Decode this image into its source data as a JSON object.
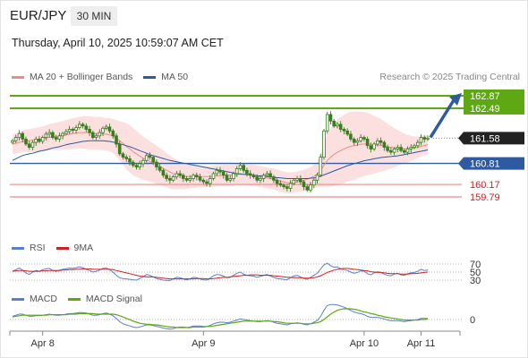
{
  "header": {
    "pair": "EUR/JPY",
    "timeframe": "30 MIN",
    "timestamp": "Thursday, April 10, 2025 10:59:07 AM CET",
    "copyright": "Research © 2025 Trading Central"
  },
  "colors": {
    "candle": "#3a7d1f",
    "ma20_band": "#f08a8a",
    "band_fill": "#fbd6d6",
    "ma50": "#2d5aa0",
    "resistance": "#5ea813",
    "support": "#f08a8a",
    "support_label": "#cc2222",
    "pivot": "#2d5aa0",
    "rsi": "#5b7fd0",
    "rsi_ma": "#cc2222",
    "macd": "#5b7fd0",
    "macd_signal": "#5ea813",
    "forecast_arrow": "#2d5aa0",
    "grid": "#cccccc"
  },
  "chart_data": [
    {
      "type": "candlestick",
      "panel": "price",
      "legend": [
        "MA 20 + Bollinger Bands",
        "MA 50"
      ],
      "ylim": [
        159.2,
        163.3
      ],
      "x_tick_labels": [
        "Apr 8",
        "Apr 9",
        "Apr 10",
        "Apr 11"
      ],
      "x_tick_index": [
        9,
        57,
        105,
        122
      ],
      "current_price": "161.58",
      "levels": [
        {
          "value": 162.87,
          "label": "162.87",
          "kind": "resistance"
        },
        {
          "value": 162.49,
          "label": "162.49",
          "kind": "resistance"
        },
        {
          "value": 161.58,
          "label": "161.58",
          "kind": "current"
        },
        {
          "value": 160.81,
          "label": "160.81",
          "kind": "pivot"
        },
        {
          "value": 160.17,
          "label": "160.17",
          "kind": "support"
        },
        {
          "value": 159.79,
          "label": "159.79",
          "kind": "support"
        }
      ],
      "forecast_target": 162.87,
      "close": [
        161.5,
        161.6,
        161.72,
        161.55,
        161.4,
        161.3,
        161.45,
        161.55,
        161.48,
        161.6,
        161.7,
        161.75,
        161.6,
        161.55,
        161.65,
        161.72,
        161.78,
        161.85,
        161.82,
        161.9,
        162.0,
        161.95,
        161.85,
        161.75,
        161.6,
        161.65,
        161.75,
        161.88,
        161.92,
        161.8,
        161.65,
        161.4,
        161.1,
        161.0,
        160.95,
        160.85,
        160.75,
        160.7,
        160.8,
        160.9,
        161.05,
        161.0,
        160.85,
        160.7,
        160.6,
        160.45,
        160.35,
        160.3,
        160.4,
        160.5,
        160.45,
        160.35,
        160.3,
        160.35,
        160.45,
        160.4,
        160.3,
        160.25,
        160.2,
        160.35,
        160.5,
        160.6,
        160.55,
        160.45,
        160.3,
        160.35,
        160.5,
        160.65,
        160.75,
        160.6,
        160.5,
        160.45,
        160.4,
        160.3,
        160.35,
        160.45,
        160.5,
        160.4,
        160.3,
        160.2,
        160.15,
        160.1,
        160.05,
        160.2,
        160.3,
        160.35,
        160.25,
        160.1,
        160.0,
        160.15,
        160.3,
        160.45,
        161.0,
        161.8,
        162.3,
        162.1,
        161.95,
        162.0,
        161.85,
        161.8,
        161.7,
        161.55,
        161.45,
        161.5,
        161.6,
        161.55,
        161.35,
        161.25,
        161.4,
        161.5,
        161.45,
        161.3,
        161.2,
        161.15,
        161.25,
        161.3,
        161.2,
        161.15,
        161.25,
        161.3,
        161.35,
        161.45,
        161.6,
        161.55,
        161.58
      ],
      "ma20": [
        161.4,
        161.42,
        161.45,
        161.48,
        161.5,
        161.5,
        161.52,
        161.53,
        161.55,
        161.56,
        161.58,
        161.6,
        161.62,
        161.63,
        161.65,
        161.66,
        161.68,
        161.7,
        161.72,
        161.73,
        161.75,
        161.75,
        161.75,
        161.74,
        161.73,
        161.72,
        161.72,
        161.71,
        161.7,
        161.68,
        161.64,
        161.58,
        161.5,
        161.42,
        161.33,
        161.25,
        161.17,
        161.1,
        161.03,
        160.97,
        160.92,
        160.87,
        160.82,
        160.77,
        160.72,
        160.66,
        160.6,
        160.55,
        160.5,
        160.47,
        160.44,
        160.42,
        160.41,
        160.41,
        160.41,
        160.41,
        160.41,
        160.41,
        160.41,
        160.41,
        160.42,
        160.43,
        160.44,
        160.45,
        160.45,
        160.45,
        160.46,
        160.47,
        160.48,
        160.48,
        160.47,
        160.46,
        160.45,
        160.43,
        160.41,
        160.39,
        160.37,
        160.35,
        160.33,
        160.3,
        160.27,
        160.25,
        160.22,
        160.22,
        160.23,
        160.25,
        160.27,
        160.3,
        160.33,
        160.37,
        160.42,
        160.48,
        160.6,
        160.75,
        160.9,
        161.0,
        161.08,
        161.15,
        161.2,
        161.25,
        161.3,
        161.33,
        161.35,
        161.37,
        161.39,
        161.4,
        161.4,
        161.39,
        161.38,
        161.37,
        161.36,
        161.34,
        161.32,
        161.3,
        161.29,
        161.28,
        161.27,
        161.26,
        161.26,
        161.27,
        161.28,
        161.3,
        161.33,
        161.36,
        161.38
      ],
      "ma50": [
        160.9,
        160.95,
        161.0,
        161.05,
        161.08,
        161.1,
        161.12,
        161.15,
        161.18,
        161.2,
        161.22,
        161.25,
        161.28,
        161.3,
        161.32,
        161.35,
        161.38,
        161.4,
        161.42,
        161.44,
        161.46,
        161.48,
        161.49,
        161.5,
        161.5,
        161.5,
        161.5,
        161.5,
        161.49,
        161.48,
        161.46,
        161.44,
        161.41,
        161.38,
        161.35,
        161.32,
        161.28,
        161.24,
        161.2,
        161.16,
        161.12,
        161.08,
        161.05,
        161.02,
        160.99,
        160.96,
        160.93,
        160.9,
        160.88,
        160.86,
        160.84,
        160.82,
        160.8,
        160.78,
        160.76,
        160.74,
        160.72,
        160.7,
        160.68,
        160.66,
        160.64,
        160.62,
        160.6,
        160.58,
        160.56,
        160.54,
        160.52,
        160.5,
        160.49,
        160.48,
        160.47,
        160.46,
        160.45,
        160.44,
        160.43,
        160.42,
        160.41,
        160.4,
        160.39,
        160.38,
        160.37,
        160.36,
        160.35,
        160.35,
        160.35,
        160.35,
        160.35,
        160.35,
        160.35,
        160.36,
        160.37,
        160.39,
        160.42,
        160.46,
        160.5,
        160.54,
        160.58,
        160.62,
        160.66,
        160.7,
        160.74,
        160.77,
        160.8,
        160.83,
        160.86,
        160.89,
        160.91,
        160.93,
        160.95,
        160.97,
        160.99,
        161.0,
        161.01,
        161.02,
        161.03,
        161.04,
        161.06,
        161.08,
        161.1,
        161.12,
        161.14,
        161.16,
        161.18,
        161.2,
        161.22
      ],
      "bb_width": [
        0.3,
        0.3,
        0.32,
        0.33,
        0.34,
        0.35,
        0.36,
        0.36,
        0.37,
        0.38,
        0.39,
        0.4,
        0.41,
        0.42,
        0.43,
        0.44,
        0.45,
        0.46,
        0.47,
        0.48,
        0.48,
        0.49,
        0.5,
        0.5,
        0.5,
        0.5,
        0.5,
        0.5,
        0.5,
        0.5,
        0.52,
        0.55,
        0.6,
        0.65,
        0.7,
        0.72,
        0.72,
        0.7,
        0.68,
        0.66,
        0.64,
        0.62,
        0.6,
        0.58,
        0.56,
        0.54,
        0.52,
        0.5,
        0.48,
        0.45,
        0.42,
        0.4,
        0.38,
        0.36,
        0.35,
        0.34,
        0.33,
        0.32,
        0.32,
        0.32,
        0.32,
        0.32,
        0.32,
        0.32,
        0.32,
        0.32,
        0.32,
        0.32,
        0.32,
        0.32,
        0.32,
        0.32,
        0.32,
        0.32,
        0.32,
        0.32,
        0.32,
        0.32,
        0.32,
        0.32,
        0.32,
        0.32,
        0.32,
        0.32,
        0.32,
        0.32,
        0.32,
        0.32,
        0.32,
        0.33,
        0.36,
        0.4,
        0.5,
        0.65,
        0.8,
        0.9,
        0.95,
        1.0,
        1.02,
        1.04,
        1.05,
        1.05,
        1.04,
        1.02,
        1.0,
        0.98,
        0.95,
        0.92,
        0.88,
        0.84,
        0.8,
        0.75,
        0.7,
        0.65,
        0.6,
        0.55,
        0.5,
        0.46,
        0.42,
        0.38,
        0.35,
        0.33,
        0.31,
        0.3,
        0.3
      ]
    },
    {
      "type": "line",
      "panel": "rsi",
      "legend": [
        "RSI",
        "9MA"
      ],
      "ylim": [
        25,
        75
      ],
      "reference_levels": [
        70,
        50,
        30
      ],
      "y_tick_labels": [
        "70",
        "50",
        "30"
      ],
      "series": [
        {
          "name": "RSI",
          "values": [
            52,
            56,
            60,
            55,
            48,
            44,
            50,
            54,
            52,
            56,
            58,
            59,
            54,
            52,
            55,
            57,
            58,
            60,
            59,
            61,
            63,
            61,
            57,
            54,
            50,
            52,
            55,
            59,
            60,
            56,
            50,
            42,
            36,
            34,
            33,
            32,
            31,
            30,
            34,
            38,
            44,
            42,
            38,
            34,
            32,
            30,
            29,
            29,
            33,
            37,
            36,
            33,
            31,
            33,
            37,
            36,
            33,
            31,
            30,
            35,
            41,
            44,
            43,
            40,
            36,
            37,
            42,
            47,
            50,
            45,
            42,
            41,
            40,
            37,
            39,
            42,
            44,
            40,
            37,
            34,
            33,
            32,
            31,
            36,
            40,
            42,
            38,
            34,
            32,
            37,
            42,
            47,
            58,
            68,
            72,
            66,
            62,
            63,
            58,
            56,
            54,
            50,
            47,
            49,
            53,
            52,
            46,
            43,
            48,
            51,
            49,
            45,
            42,
            41,
            45,
            47,
            43,
            42,
            46,
            48,
            49,
            52,
            57,
            54,
            55
          ]
        },
        {
          "name": "9MA",
          "values": [
            52,
            53,
            54,
            54,
            53,
            52,
            52,
            52,
            52,
            53,
            53,
            54,
            54,
            54,
            54,
            55,
            55,
            56,
            56,
            57,
            57,
            58,
            58,
            58,
            57,
            57,
            57,
            57,
            57,
            57,
            56,
            54,
            52,
            50,
            48,
            46,
            44,
            42,
            40,
            39,
            38,
            38,
            38,
            37,
            36,
            35,
            34,
            33,
            33,
            33,
            33,
            33,
            33,
            33,
            33,
            34,
            34,
            34,
            33,
            33,
            34,
            35,
            36,
            37,
            37,
            38,
            39,
            40,
            41,
            42,
            42,
            43,
            43,
            43,
            42,
            42,
            42,
            42,
            41,
            40,
            39,
            38,
            37,
            37,
            36,
            36,
            36,
            35,
            35,
            35,
            36,
            38,
            41,
            45,
            49,
            52,
            55,
            57,
            58,
            59,
            59,
            58,
            57,
            56,
            55,
            54,
            53,
            51,
            50,
            49,
            49,
            48,
            47,
            46,
            46,
            46,
            45,
            45,
            45,
            46,
            46,
            47,
            48,
            49,
            50
          ]
        }
      ]
    },
    {
      "type": "line",
      "panel": "macd",
      "legend": [
        "MACD",
        "MACD Signal"
      ],
      "ylim": [
        -0.35,
        0.35
      ],
      "reference_levels": [
        0
      ],
      "y_tick_labels": [
        "0"
      ],
      "series": [
        {
          "name": "MACD",
          "values": [
            0.06,
            0.08,
            0.1,
            0.1,
            0.08,
            0.06,
            0.06,
            0.07,
            0.07,
            0.08,
            0.09,
            0.1,
            0.09,
            0.08,
            0.08,
            0.09,
            0.1,
            0.11,
            0.11,
            0.12,
            0.13,
            0.13,
            0.12,
            0.1,
            0.08,
            0.08,
            0.09,
            0.11,
            0.12,
            0.1,
            0.07,
            0.02,
            -0.04,
            -0.08,
            -0.1,
            -0.12,
            -0.14,
            -0.15,
            -0.14,
            -0.12,
            -0.1,
            -0.1,
            -0.11,
            -0.13,
            -0.14,
            -0.16,
            -0.17,
            -0.18,
            -0.17,
            -0.15,
            -0.14,
            -0.14,
            -0.15,
            -0.14,
            -0.12,
            -0.12,
            -0.12,
            -0.13,
            -0.13,
            -0.11,
            -0.08,
            -0.06,
            -0.05,
            -0.05,
            -0.06,
            -0.05,
            -0.03,
            -0.01,
            0.01,
            0.0,
            -0.01,
            -0.02,
            -0.03,
            -0.04,
            -0.04,
            -0.03,
            -0.02,
            -0.03,
            -0.05,
            -0.07,
            -0.08,
            -0.09,
            -0.1,
            -0.08,
            -0.07,
            -0.06,
            -0.07,
            -0.09,
            -0.1,
            -0.08,
            -0.05,
            -0.02,
            0.06,
            0.17,
            0.26,
            0.28,
            0.28,
            0.27,
            0.25,
            0.23,
            0.2,
            0.17,
            0.14,
            0.12,
            0.11,
            0.09,
            0.06,
            0.04,
            0.04,
            0.04,
            0.03,
            0.01,
            -0.01,
            -0.02,
            -0.02,
            -0.02,
            -0.03,
            -0.04,
            -0.03,
            -0.02,
            -0.01,
            0.0,
            0.02,
            0.02,
            0.02
          ]
        },
        {
          "name": "MACD Signal",
          "values": [
            0.05,
            0.06,
            0.07,
            0.08,
            0.08,
            0.08,
            0.08,
            0.08,
            0.08,
            0.08,
            0.08,
            0.09,
            0.09,
            0.09,
            0.09,
            0.09,
            0.09,
            0.1,
            0.1,
            0.1,
            0.11,
            0.11,
            0.11,
            0.11,
            0.11,
            0.1,
            0.1,
            0.1,
            0.1,
            0.1,
            0.1,
            0.09,
            0.07,
            0.05,
            0.02,
            0.0,
            -0.03,
            -0.05,
            -0.07,
            -0.08,
            -0.09,
            -0.09,
            -0.1,
            -0.1,
            -0.11,
            -0.12,
            -0.13,
            -0.14,
            -0.14,
            -0.15,
            -0.15,
            -0.15,
            -0.15,
            -0.15,
            -0.14,
            -0.14,
            -0.14,
            -0.14,
            -0.13,
            -0.13,
            -0.12,
            -0.11,
            -0.1,
            -0.09,
            -0.08,
            -0.07,
            -0.06,
            -0.05,
            -0.04,
            -0.03,
            -0.03,
            -0.03,
            -0.03,
            -0.03,
            -0.03,
            -0.03,
            -0.03,
            -0.03,
            -0.04,
            -0.04,
            -0.05,
            -0.06,
            -0.07,
            -0.07,
            -0.07,
            -0.07,
            -0.07,
            -0.08,
            -0.08,
            -0.08,
            -0.07,
            -0.06,
            -0.04,
            0.0,
            0.05,
            0.1,
            0.14,
            0.17,
            0.19,
            0.2,
            0.2,
            0.2,
            0.19,
            0.18,
            0.16,
            0.14,
            0.13,
            0.11,
            0.1,
            0.08,
            0.07,
            0.05,
            0.04,
            0.03,
            0.02,
            0.01,
            0.0,
            -0.01,
            -0.01,
            -0.01,
            -0.01,
            -0.01,
            0.0,
            0.0,
            0.01
          ]
        }
      ]
    }
  ]
}
